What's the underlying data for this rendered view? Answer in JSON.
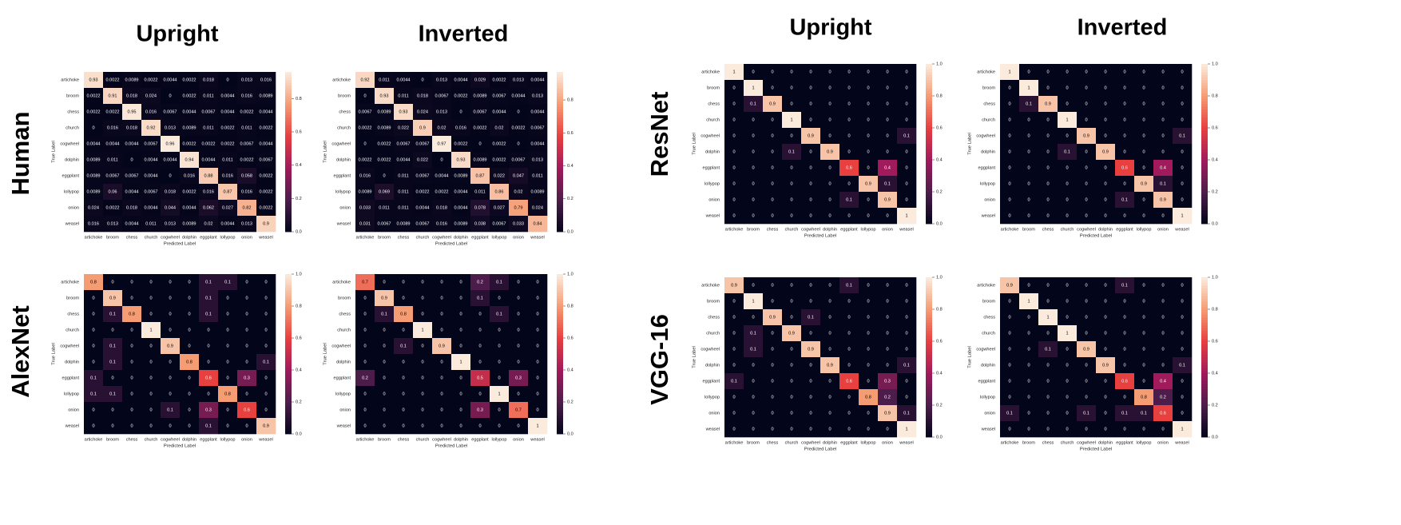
{
  "labels": {
    "columns": [
      "Upright",
      "Inverted",
      "Upright",
      "Inverted"
    ],
    "rows": [
      "Human",
      "AlexNet",
      "ResNet",
      "VGG-16"
    ]
  },
  "chart_data": [
    {
      "type": "heatmap",
      "xlabel": "Predicted Label",
      "ylabel": "True Label",
      "categories": [
        "artichoke",
        "broom",
        "chess",
        "church",
        "cogwheel",
        "dolphin",
        "eggplant",
        "lollypop",
        "onion",
        "weasel"
      ],
      "values": [
        [
          0.93,
          0.0022,
          0.0089,
          0.0022,
          0.0044,
          0.0022,
          0.018,
          0,
          0.013,
          0.016
        ],
        [
          0.0022,
          0.91,
          0.018,
          0.024,
          0,
          0.0022,
          0.011,
          0.0044,
          0.016,
          0.0089
        ],
        [
          0.0022,
          0.0022,
          0.95,
          0.016,
          0.0067,
          0.0044,
          0.0067,
          0.0044,
          0.0022,
          0.0044
        ],
        [
          0,
          0.016,
          0.018,
          0.92,
          0.013,
          0.0089,
          0.011,
          0.0022,
          0.011,
          0.0022
        ],
        [
          0.0044,
          0.0044,
          0.0044,
          0.0067,
          0.96,
          0.0022,
          0.0022,
          0.0022,
          0.0067,
          0.0044
        ],
        [
          0.0089,
          0.011,
          0,
          0.0044,
          0.0044,
          0.94,
          0.0044,
          0.011,
          0.0022,
          0.0067
        ],
        [
          0.0089,
          0.0067,
          0.0067,
          0.0044,
          0,
          0.016,
          0.88,
          0.016,
          0.058,
          0.0022
        ],
        [
          0.0089,
          0.06,
          0.0044,
          0.0067,
          0.018,
          0.0022,
          0.016,
          0.87,
          0.016,
          0.0022
        ],
        [
          0.024,
          0.0022,
          0.018,
          0.0044,
          0.044,
          0.0044,
          0.062,
          0.027,
          0.82,
          0.0022
        ],
        [
          0.016,
          0.013,
          0.0044,
          0.011,
          0.013,
          0.0089,
          0.02,
          0.0044,
          0.013,
          0.9
        ]
      ],
      "zlim": [
        0,
        0.96
      ],
      "colorbar_ticks": [
        {
          "value": 0,
          "label": "0.0"
        },
        0.2,
        0.4,
        0.6,
        0.8
      ],
      "colorscale": [
        "#03051a",
        "#4c1d4b",
        "#a11a5b",
        "#e83f3f",
        "#f69c73",
        "#faebdd"
      ]
    },
    {
      "type": "heatmap",
      "xlabel": "Predicted Label",
      "ylabel": "True Label",
      "categories": [
        "artichoke",
        "broom",
        "chess",
        "church",
        "cogwheel",
        "dolphin",
        "eggplant",
        "lollypop",
        "onion",
        "weasel"
      ],
      "values": [
        [
          0.92,
          0.011,
          0.0044,
          0,
          0.013,
          0.0044,
          0.029,
          0.0022,
          0.013,
          0.0044
        ],
        [
          0,
          0.93,
          0.011,
          0.018,
          0.0067,
          0.0022,
          0.0089,
          0.0067,
          0.0044,
          0.013
        ],
        [
          0.0067,
          0.0089,
          0.93,
          0.024,
          0.013,
          0,
          0.0067,
          0.0044,
          0,
          0.0044
        ],
        [
          0.0022,
          0.0089,
          0.022,
          0.9,
          0.02,
          0.016,
          0.0022,
          0.02,
          0.0022,
          0.0067
        ],
        [
          0,
          0.0022,
          0.0067,
          0.0067,
          0.97,
          0.0022,
          0,
          0.0022,
          0,
          0.0044
        ],
        [
          0.0022,
          0.0022,
          0.0044,
          0.022,
          0,
          0.93,
          0.0089,
          0.0022,
          0.0067,
          0.013
        ],
        [
          0.016,
          0,
          0.011,
          0.0067,
          0.0044,
          0.0089,
          0.87,
          0.022,
          0.047,
          0.011
        ],
        [
          0.0089,
          0.069,
          0.011,
          0.0022,
          0.0022,
          0.0044,
          0.011,
          0.86,
          0.02,
          0.0089
        ],
        [
          0.033,
          0.011,
          0.011,
          0.0044,
          0.018,
          0.0044,
          0.078,
          0.027,
          0.79,
          0.024
        ],
        [
          0.031,
          0.0067,
          0.0089,
          0.0067,
          0.016,
          0.0089,
          0.038,
          0.0067,
          0.033,
          0.84
        ]
      ],
      "zlim": [
        0,
        0.97
      ],
      "colorbar_ticks": [
        {
          "value": 0,
          "label": "0.0"
        },
        0.2,
        0.4,
        0.6,
        0.8
      ],
      "colorscale": [
        "#03051a",
        "#4c1d4b",
        "#a11a5b",
        "#e83f3f",
        "#f69c73",
        "#faebdd"
      ]
    },
    {
      "type": "heatmap",
      "xlabel": "Predicted Label",
      "ylabel": "True Label",
      "categories": [
        "artichoke",
        "broom",
        "chess",
        "church",
        "cogwheel",
        "dolphin",
        "eggplant",
        "lollypop",
        "onion",
        "weasel"
      ],
      "values": [
        [
          0.8,
          0,
          0,
          0,
          0,
          0,
          0.1,
          0.1,
          0,
          0
        ],
        [
          0,
          0.9,
          0,
          0,
          0,
          0,
          0.1,
          0,
          0,
          0
        ],
        [
          0,
          0.1,
          0.8,
          0,
          0,
          0,
          0.1,
          0,
          0,
          0
        ],
        [
          0,
          0,
          0,
          1,
          0,
          0,
          0,
          0,
          0,
          0
        ],
        [
          0,
          0.1,
          0,
          0,
          0.9,
          0,
          0,
          0,
          0,
          0
        ],
        [
          0,
          0.1,
          0,
          0,
          0,
          0.8,
          0,
          0,
          0,
          0.1
        ],
        [
          0.1,
          0,
          0,
          0,
          0,
          0,
          0.6,
          0,
          0.3,
          0
        ],
        [
          0.1,
          0.1,
          0,
          0,
          0,
          0,
          0,
          0.8,
          0,
          0
        ],
        [
          0,
          0,
          0,
          0,
          0.1,
          0,
          0.3,
          0,
          0.6,
          0
        ],
        [
          0,
          0,
          0,
          0,
          0,
          0,
          0.1,
          0,
          0,
          0.9
        ]
      ],
      "zlim": [
        0,
        1
      ],
      "colorbar_ticks": [
        {
          "value": 0,
          "label": "0.0"
        },
        0.2,
        0.4,
        0.6,
        0.8,
        {
          "value": 1,
          "label": "1.0"
        }
      ],
      "colorscale": [
        "#03051a",
        "#4c1d4b",
        "#a11a5b",
        "#e83f3f",
        "#f69c73",
        "#faebdd"
      ]
    },
    {
      "type": "heatmap",
      "xlabel": "Predicted Label",
      "ylabel": "True Label",
      "categories": [
        "artichoke",
        "broom",
        "chess",
        "church",
        "cogwheel",
        "dolphin",
        "eggplant",
        "lollypop",
        "onion",
        "weasel"
      ],
      "values": [
        [
          0.7,
          0,
          0,
          0,
          0,
          0,
          0.2,
          0.1,
          0,
          0
        ],
        [
          0,
          0.9,
          0,
          0,
          0,
          0,
          0.1,
          0,
          0,
          0
        ],
        [
          0,
          0.1,
          0.8,
          0,
          0,
          0,
          0,
          0.1,
          0,
          0
        ],
        [
          0,
          0,
          0,
          1,
          0,
          0,
          0,
          0,
          0,
          0
        ],
        [
          0,
          0,
          0.1,
          0,
          0.9,
          0,
          0,
          0,
          0,
          0
        ],
        [
          0,
          0,
          0,
          0,
          0,
          1,
          0,
          0,
          0,
          0
        ],
        [
          0.2,
          0,
          0,
          0,
          0,
          0,
          0.5,
          0,
          0.3,
          0
        ],
        [
          0,
          0,
          0,
          0,
          0,
          0,
          0,
          1,
          0,
          0
        ],
        [
          0,
          0,
          0,
          0,
          0,
          0,
          0.3,
          0,
          0.7,
          0
        ],
        [
          0,
          0,
          0,
          0,
          0,
          0,
          0,
          0,
          0,
          1
        ]
      ],
      "zlim": [
        0,
        1
      ],
      "colorbar_ticks": [
        {
          "value": 0,
          "label": "0.0"
        },
        0.2,
        0.4,
        0.6,
        0.8,
        {
          "value": 1,
          "label": "1.0"
        }
      ],
      "colorscale": [
        "#03051a",
        "#4c1d4b",
        "#a11a5b",
        "#e83f3f",
        "#f69c73",
        "#faebdd"
      ]
    },
    {
      "type": "heatmap",
      "xlabel": "Predicted Label",
      "ylabel": "True Label",
      "categories": [
        "artichoke",
        "broom",
        "chess",
        "church",
        "cogwheel",
        "dolphin",
        "eggplant",
        "lollypop",
        "onion",
        "weasel"
      ],
      "values": [
        [
          1,
          0,
          0,
          0,
          0,
          0,
          0,
          0,
          0,
          0
        ],
        [
          0,
          1,
          0,
          0,
          0,
          0,
          0,
          0,
          0,
          0
        ],
        [
          0,
          0.1,
          0.9,
          0,
          0,
          0,
          0,
          0,
          0,
          0
        ],
        [
          0,
          0,
          0,
          1,
          0,
          0,
          0,
          0,
          0,
          0
        ],
        [
          0,
          0,
          0,
          0,
          0.9,
          0,
          0,
          0,
          0,
          0.1
        ],
        [
          0,
          0,
          0,
          0.1,
          0,
          0.9,
          0,
          0,
          0,
          0
        ],
        [
          0,
          0,
          0,
          0,
          0,
          0,
          0.6,
          0,
          0.4,
          0
        ],
        [
          0,
          0,
          0,
          0,
          0,
          0,
          0,
          0.9,
          0.1,
          0
        ],
        [
          0,
          0,
          0,
          0,
          0,
          0,
          0.1,
          0,
          0.9,
          0
        ],
        [
          0,
          0,
          0,
          0,
          0,
          0,
          0,
          0,
          0,
          1
        ]
      ],
      "zlim": [
        0,
        1
      ],
      "colorbar_ticks": [
        {
          "value": 0,
          "label": "0.0"
        },
        0.2,
        0.4,
        0.6,
        0.8,
        {
          "value": 1,
          "label": "1.0"
        }
      ],
      "colorscale": [
        "#03051a",
        "#4c1d4b",
        "#a11a5b",
        "#e83f3f",
        "#f69c73",
        "#faebdd"
      ]
    },
    {
      "type": "heatmap",
      "xlabel": "Predicted Label",
      "ylabel": "True Label",
      "categories": [
        "artichoke",
        "broom",
        "chess",
        "church",
        "cogwheel",
        "dolphin",
        "eggplant",
        "lollypop",
        "onion",
        "weasel"
      ],
      "values": [
        [
          1,
          0,
          0,
          0,
          0,
          0,
          0,
          0,
          0,
          0
        ],
        [
          0,
          1,
          0,
          0,
          0,
          0,
          0,
          0,
          0,
          0
        ],
        [
          0,
          0.1,
          0.9,
          0,
          0,
          0,
          0,
          0,
          0,
          0
        ],
        [
          0,
          0,
          0,
          1,
          0,
          0,
          0,
          0,
          0,
          0
        ],
        [
          0,
          0,
          0,
          0,
          0.9,
          0,
          0,
          0,
          0,
          0.1
        ],
        [
          0,
          0,
          0,
          0.1,
          0,
          0.9,
          0,
          0,
          0,
          0
        ],
        [
          0,
          0,
          0,
          0,
          0,
          0,
          0.6,
          0,
          0.4,
          0
        ],
        [
          0,
          0,
          0,
          0,
          0,
          0,
          0,
          0.9,
          0.1,
          0
        ],
        [
          0,
          0,
          0,
          0,
          0,
          0,
          0.1,
          0,
          0.9,
          0
        ],
        [
          0,
          0,
          0,
          0,
          0,
          0,
          0,
          0,
          0,
          1
        ]
      ],
      "zlim": [
        0,
        1
      ],
      "colorbar_ticks": [
        {
          "value": 0,
          "label": "0.0"
        },
        0.2,
        0.4,
        0.6,
        0.8,
        {
          "value": 1,
          "label": "1.0"
        }
      ],
      "colorscale": [
        "#03051a",
        "#4c1d4b",
        "#a11a5b",
        "#e83f3f",
        "#f69c73",
        "#faebdd"
      ]
    },
    {
      "type": "heatmap",
      "xlabel": "Predicted Label",
      "ylabel": "True Label",
      "categories": [
        "artichoke",
        "broom",
        "chess",
        "church",
        "cogwheel",
        "dolphin",
        "eggplant",
        "lollypop",
        "onion",
        "weasel"
      ],
      "values": [
        [
          0.9,
          0,
          0,
          0,
          0,
          0,
          0.1,
          0,
          0,
          0
        ],
        [
          0,
          1,
          0,
          0,
          0,
          0,
          0,
          0,
          0,
          0
        ],
        [
          0,
          0,
          0.9,
          0,
          0.1,
          0,
          0,
          0,
          0,
          0
        ],
        [
          0,
          0.1,
          0,
          0.9,
          0,
          0,
          0,
          0,
          0,
          0
        ],
        [
          0,
          0.1,
          0,
          0,
          0.9,
          0,
          0,
          0,
          0,
          0
        ],
        [
          0,
          0,
          0,
          0,
          0,
          0.9,
          0,
          0,
          0,
          0.1
        ],
        [
          0.1,
          0,
          0,
          0,
          0,
          0,
          0.6,
          0,
          0.3,
          0
        ],
        [
          0,
          0,
          0,
          0,
          0,
          0,
          0,
          0.8,
          0.2,
          0
        ],
        [
          0,
          0,
          0,
          0,
          0,
          0,
          0,
          0,
          0.9,
          0.1
        ],
        [
          0,
          0,
          0,
          0,
          0,
          0,
          0,
          0,
          0,
          1
        ]
      ],
      "zlim": [
        0,
        1
      ],
      "colorbar_ticks": [
        {
          "value": 0,
          "label": "0.0"
        },
        0.2,
        0.4,
        0.6,
        0.8,
        {
          "value": 1,
          "label": "1.0"
        }
      ],
      "colorscale": [
        "#03051a",
        "#4c1d4b",
        "#a11a5b",
        "#e83f3f",
        "#f69c73",
        "#faebdd"
      ]
    },
    {
      "type": "heatmap",
      "xlabel": "Predicted Label",
      "ylabel": "True Label",
      "categories": [
        "artichoke",
        "broom",
        "chess",
        "church",
        "cogwheel",
        "dolphin",
        "eggplant",
        "lollypop",
        "onion",
        "weasel"
      ],
      "values": [
        [
          0.9,
          0,
          0,
          0,
          0,
          0,
          0.1,
          0,
          0,
          0
        ],
        [
          0,
          1,
          0,
          0,
          0,
          0,
          0,
          0,
          0,
          0
        ],
        [
          0,
          0,
          1,
          0,
          0,
          0,
          0,
          0,
          0,
          0
        ],
        [
          0,
          0,
          0,
          1,
          0,
          0,
          0,
          0,
          0,
          0
        ],
        [
          0,
          0,
          0.1,
          0,
          0.9,
          0,
          0,
          0,
          0,
          0
        ],
        [
          0,
          0,
          0,
          0,
          0,
          0.9,
          0,
          0,
          0,
          0.1
        ],
        [
          0,
          0,
          0,
          0,
          0,
          0,
          0.6,
          0,
          0.4,
          0
        ],
        [
          0,
          0,
          0,
          0,
          0,
          0,
          0,
          0.8,
          0.2,
          0
        ],
        [
          0.1,
          0,
          0,
          0,
          0.1,
          0,
          0.1,
          0.1,
          0.6,
          0
        ],
        [
          0,
          0,
          0,
          0,
          0,
          0,
          0,
          0,
          0,
          1
        ]
      ],
      "zlim": [
        0,
        1
      ],
      "colorbar_ticks": [
        {
          "value": 0,
          "label": "0.0"
        },
        0.2,
        0.4,
        0.6,
        0.8,
        {
          "value": 1,
          "label": "1.0"
        }
      ],
      "colorscale": [
        "#03051a",
        "#4c1d4b",
        "#a11a5b",
        "#e83f3f",
        "#f69c73",
        "#faebdd"
      ]
    }
  ]
}
